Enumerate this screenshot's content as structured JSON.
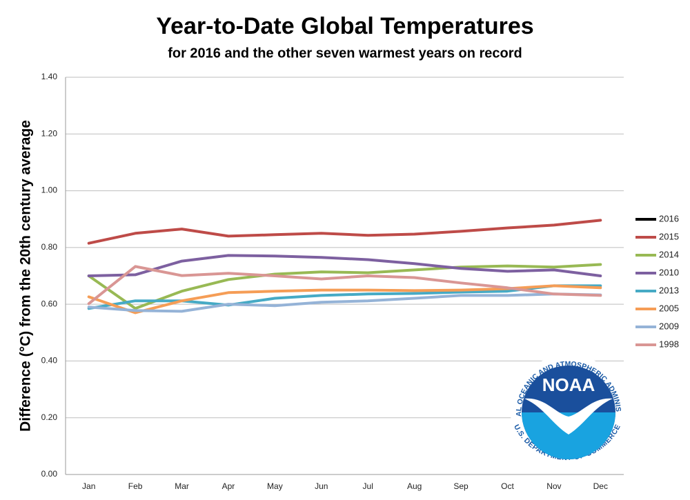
{
  "chart_data": {
    "type": "line",
    "title": "Year-to-Date Global Temperatures",
    "subtitle": "for 2016 and the other seven warmest years on record",
    "y_label": "Difference (°C) from the 20th century average",
    "categories": [
      "Jan",
      "Feb",
      "Mar",
      "Apr",
      "May",
      "Jun",
      "Jul",
      "Aug",
      "Sep",
      "Oct",
      "Nov",
      "Dec"
    ],
    "series": [
      {
        "name": "2016",
        "color": "#000000",
        "values": [
          null,
          null,
          null,
          null,
          null,
          null,
          null,
          null,
          null,
          null,
          null,
          null
        ]
      },
      {
        "name": "2015",
        "color": "#be4b48",
        "values": [
          0.815,
          0.85,
          0.865,
          0.84,
          0.845,
          0.85,
          0.843,
          0.847,
          0.857,
          0.869,
          0.879,
          0.896
        ]
      },
      {
        "name": "2014",
        "color": "#98b954",
        "values": [
          0.7,
          0.585,
          0.646,
          0.687,
          0.706,
          0.714,
          0.711,
          0.721,
          0.731,
          0.735,
          0.731,
          0.74
        ]
      },
      {
        "name": "2010",
        "color": "#7d60a0",
        "values": [
          0.7,
          0.704,
          0.752,
          0.772,
          0.77,
          0.765,
          0.757,
          0.743,
          0.726,
          0.716,
          0.721,
          0.7
        ]
      },
      {
        "name": "2013",
        "color": "#46aac5",
        "values": [
          0.585,
          0.612,
          0.612,
          0.597,
          0.621,
          0.631,
          0.636,
          0.638,
          0.643,
          0.646,
          0.665,
          0.665
        ]
      },
      {
        "name": "2005",
        "color": "#f59d56",
        "values": [
          0.626,
          0.57,
          0.612,
          0.641,
          0.646,
          0.65,
          0.65,
          0.648,
          0.65,
          0.655,
          0.665,
          0.658
        ]
      },
      {
        "name": "2009",
        "color": "#95b3d7",
        "values": [
          0.59,
          0.578,
          0.575,
          0.6,
          0.595,
          0.607,
          0.612,
          0.621,
          0.631,
          0.631,
          0.636,
          0.633
        ]
      },
      {
        "name": "1998",
        "color": "#d99694",
        "values": [
          0.602,
          0.733,
          0.701,
          0.709,
          0.7,
          0.689,
          0.7,
          0.694,
          0.675,
          0.658,
          0.636,
          0.631
        ]
      }
    ],
    "ylim": [
      0,
      1.4
    ],
    "yticks": [
      {
        "value": 0,
        "label": "0.00"
      },
      {
        "value": 0.2,
        "label": "0.20"
      },
      {
        "value": 0.4,
        "label": "0.40"
      },
      {
        "value": 0.6,
        "label": "0.60"
      },
      {
        "value": 0.8,
        "label": "0.80"
      },
      {
        "value": 1.0,
        "label": "1.00"
      },
      {
        "value": 1.2,
        "label": "1.20"
      },
      {
        "value": 1.4,
        "label": "1.40"
      }
    ],
    "grid": true,
    "legend": "right"
  },
  "logo": {
    "name": "NOAA",
    "ring_top": "NATIONAL OCEANIC AND ATMOSPHERIC ADMINISTRATION",
    "ring_bottom": "U.S. DEPARTMENT OF COMMERCE"
  }
}
